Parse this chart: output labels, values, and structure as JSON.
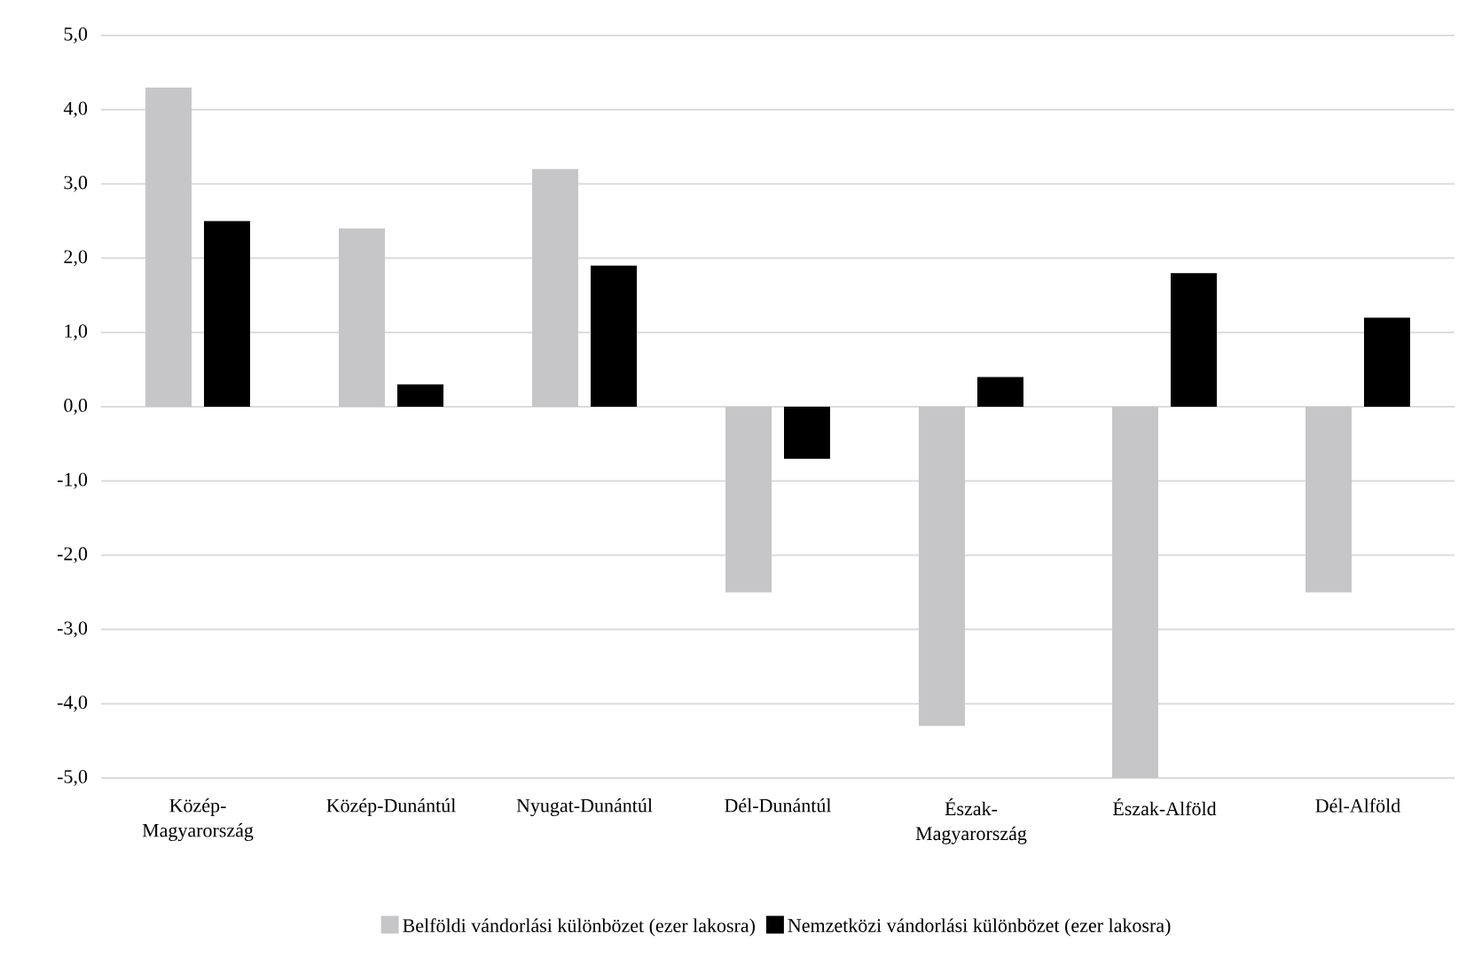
{
  "chart_data": {
    "type": "bar",
    "categories": [
      "Közép-Magyarország",
      "Közép-Dunántúl",
      "Nyugat-Dunántúl",
      "Dél-Dunántúl",
      "Észak-Magyarország",
      "Észak-Alföld",
      "Dél-Alföld"
    ],
    "series": [
      {
        "name": "Belföldi vándorlási különbözet (ezer lakosra)",
        "color": "#c6c6c8",
        "values": [
          4.3,
          2.4,
          3.2,
          -2.5,
          -4.3,
          -5.0,
          -2.5
        ]
      },
      {
        "name": "Nemzetközi vándorlási különbözet (ezer lakosra)",
        "color": "#000000",
        "values": [
          2.5,
          0.3,
          1.9,
          -0.7,
          0.4,
          1.8,
          1.2
        ]
      }
    ],
    "ylim": [
      -5,
      5
    ],
    "yticks": [
      {
        "value": -5,
        "label": "-5,0"
      },
      {
        "value": -4,
        "label": "-4,0"
      },
      {
        "value": -3,
        "label": "-3,0"
      },
      {
        "value": -2,
        "label": "-2,0"
      },
      {
        "value": -1,
        "label": "-1,0"
      },
      {
        "value": 0,
        "label": "0,0"
      },
      {
        "value": 1,
        "label": "1,0"
      },
      {
        "value": 2,
        "label": "2,0"
      },
      {
        "value": 3,
        "label": "3,0"
      },
      {
        "value": 4,
        "label": "4,0"
      },
      {
        "value": 5,
        "label": "5,0"
      }
    ],
    "grid": "y",
    "legend": "bottom"
  }
}
